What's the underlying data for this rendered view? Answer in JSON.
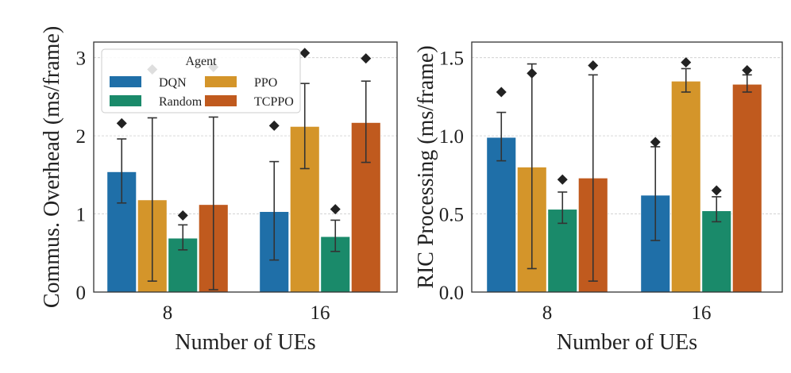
{
  "colors": {
    "DQN": "#1f6fa8",
    "PPO": "#d4952a",
    "Random": "#1a8a6a",
    "TCPPO": "#c05a1e",
    "grid": "#cccccc",
    "axis": "#333333",
    "errorbar": "#333333",
    "outlier": "#222222"
  },
  "chart_data": [
    {
      "type": "bar",
      "categories": [
        "8",
        "16"
      ],
      "xlabel": "Number of UEs",
      "ylabel": "Commus. Overhead (ms/frame)",
      "ylim": [
        0,
        3.2
      ],
      "yticks": [
        0,
        1,
        2,
        3
      ],
      "ytick_labels": [
        "0",
        "1",
        "2",
        "3"
      ],
      "grid": true,
      "legend": {
        "title": "Agent",
        "placement": "upper-left",
        "entries": [
          "DQN",
          "PPO",
          "Random",
          "TCPPO"
        ]
      },
      "series": [
        {
          "name": "DQN",
          "values": [
            1.54,
            1.03
          ],
          "err_low": [
            1.14,
            0.41
          ],
          "err_high": [
            1.96,
            1.67
          ],
          "outliers": [
            2.16,
            2.13
          ]
        },
        {
          "name": "PPO",
          "values": [
            1.18,
            2.12
          ],
          "err_low": [
            0.14,
            1.58
          ],
          "err_high": [
            2.23,
            2.67
          ],
          "outliers": [
            2.85,
            3.06
          ]
        },
        {
          "name": "Random",
          "values": [
            0.69,
            0.71
          ],
          "err_low": [
            0.54,
            0.52
          ],
          "err_high": [
            0.86,
            0.92
          ],
          "outliers": [
            0.98,
            1.06
          ]
        },
        {
          "name": "TCPPO",
          "values": [
            1.12,
            2.17
          ],
          "err_low": [
            0.03,
            1.66
          ],
          "err_high": [
            2.24,
            2.7
          ],
          "outliers": [
            2.88,
            2.99
          ]
        }
      ]
    },
    {
      "type": "bar",
      "categories": [
        "8",
        "16"
      ],
      "xlabel": "Number of UEs",
      "ylabel": "RIC Processing (ms/frame)",
      "ylim": [
        0,
        1.6
      ],
      "yticks": [
        0,
        0.5,
        1.0,
        1.5
      ],
      "ytick_labels": [
        "0.0",
        "0.5",
        "1.0",
        "1.5"
      ],
      "grid": true,
      "series": [
        {
          "name": "DQN",
          "values": [
            0.99,
            0.62
          ],
          "err_low": [
            0.84,
            0.33
          ],
          "err_high": [
            1.15,
            0.93
          ],
          "outliers": [
            1.28,
            0.96
          ]
        },
        {
          "name": "PPO",
          "values": [
            0.8,
            1.35
          ],
          "err_low": [
            0.15,
            1.28
          ],
          "err_high": [
            1.46,
            1.43
          ],
          "outliers": [
            1.4,
            1.47
          ]
        },
        {
          "name": "Random",
          "values": [
            0.53,
            0.52
          ],
          "err_low": [
            0.44,
            0.45
          ],
          "err_high": [
            0.64,
            0.61
          ],
          "outliers": [
            0.72,
            0.65
          ]
        },
        {
          "name": "TCPPO",
          "values": [
            0.73,
            1.33
          ],
          "err_low": [
            0.07,
            1.28
          ],
          "err_high": [
            1.39,
            1.39
          ],
          "outliers": [
            1.45,
            1.42
          ]
        }
      ]
    }
  ]
}
